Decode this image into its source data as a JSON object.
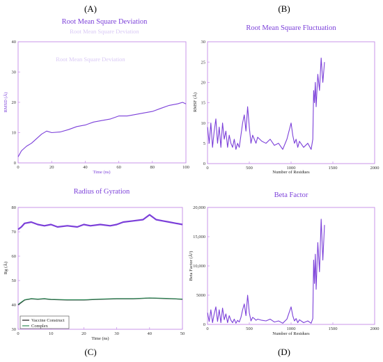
{
  "panel_labels": [
    "(A)",
    "(B)",
    "(C)",
    "(D)"
  ],
  "chart_data": [
    {
      "type": "line",
      "title": "Root Mean Square Deviation",
      "ghost_title": "Root Mean Square Deviation",
      "ghost_title_2": "Root Mean Square Deviation",
      "xlabel": "Time (ns)",
      "ylabel": "RMSD (Å)",
      "xlim": [
        0,
        100
      ],
      "ylim": [
        0,
        40
      ],
      "xticks": [
        0,
        20,
        40,
        60,
        80,
        100
      ],
      "yticks": [
        0,
        10,
        20,
        30,
        40
      ],
      "grid": false,
      "series": [
        {
          "color": "#7b3fd9",
          "x": [
            0,
            2,
            5,
            8,
            11,
            14,
            17,
            20,
            25,
            30,
            35,
            40,
            45,
            50,
            55,
            60,
            65,
            70,
            75,
            80,
            85,
            90,
            95,
            98,
            100
          ],
          "y": [
            2,
            4,
            5.5,
            6.5,
            8,
            9.5,
            10.5,
            10,
            10.2,
            11,
            12,
            12.5,
            13.5,
            14,
            14.5,
            15.5,
            15.5,
            16,
            16.5,
            17,
            18,
            19,
            19.5,
            20,
            19.5
          ]
        }
      ]
    },
    {
      "type": "line",
      "title": "Root Mean Square Fluctuation",
      "xlabel": "Number of Residues",
      "ylabel": "RMSF (Å)",
      "xlim": [
        0,
        2000
      ],
      "ylim": [
        0,
        30
      ],
      "xticks": [
        0,
        500,
        1000,
        1500,
        2000
      ],
      "yticks": [
        0,
        5,
        10,
        15,
        20,
        25,
        30
      ],
      "grid": false,
      "series": [
        {
          "color": "#7b3fd9",
          "x": [
            1,
            20,
            40,
            60,
            80,
            100,
            120,
            140,
            160,
            180,
            200,
            220,
            240,
            260,
            280,
            300,
            320,
            340,
            360,
            380,
            400,
            420,
            440,
            460,
            480,
            500,
            520,
            540,
            560,
            580,
            600,
            650,
            700,
            750,
            800,
            850,
            900,
            950,
            1000,
            1020,
            1040,
            1060,
            1080,
            1100,
            1150,
            1200,
            1240,
            1260,
            1270,
            1280,
            1290,
            1300,
            1320,
            1340,
            1360,
            1380,
            1400
          ],
          "y": [
            9,
            5,
            10,
            4,
            8,
            11,
            5,
            9,
            4,
            10,
            6,
            8,
            4,
            7,
            5,
            4,
            6,
            3.5,
            5,
            4,
            7,
            10,
            12,
            8,
            14,
            9,
            5,
            7,
            6,
            5,
            6.5,
            5.5,
            5,
            6,
            4.5,
            5,
            3.5,
            6,
            10,
            7,
            5,
            6,
            4,
            5.5,
            4,
            5,
            3.5,
            6,
            18,
            15,
            20,
            14,
            22,
            18,
            26,
            20,
            25
          ]
        }
      ]
    },
    {
      "type": "line",
      "title": "Radius of Gyration",
      "xlabel": "Time (ns)",
      "ylabel": "Rg (Å)",
      "xlim": [
        0,
        50
      ],
      "ylim": [
        30,
        80
      ],
      "xticks": [
        0,
        10,
        20,
        30,
        40,
        50
      ],
      "yticks": [
        30,
        40,
        50,
        60,
        70,
        80
      ],
      "grid": false,
      "legend": "bottom-left",
      "series": [
        {
          "color": "#7b3fd9",
          "x": [
            0,
            1,
            2,
            4,
            6,
            8,
            10,
            12,
            15,
            18,
            20,
            22,
            25,
            28,
            30,
            32,
            35,
            38,
            40,
            42,
            44,
            46,
            48,
            50
          ],
          "y": [
            71,
            72,
            73.5,
            74,
            73,
            72.5,
            73,
            72,
            72.5,
            72,
            73,
            72.5,
            73,
            72.5,
            73,
            74,
            74.5,
            75,
            77,
            75,
            74.5,
            74,
            73.5,
            73
          ]
        },
        {
          "name": "Vaccine Construct",
          "color": "#1a1a1a",
          "x": [
            0,
            1,
            2,
            4,
            6,
            8,
            10,
            15,
            20,
            25,
            30,
            35,
            40,
            45,
            50
          ],
          "y": [
            40,
            41,
            42,
            42.5,
            42.3,
            42.5,
            42.2,
            42,
            42,
            42.3,
            42.5,
            42.5,
            42.8,
            42.6,
            42.3
          ]
        },
        {
          "name": "Complex",
          "color": "#2e8b57",
          "x": [
            0,
            1,
            2,
            4,
            6,
            8,
            10,
            15,
            20,
            25,
            30,
            35,
            40,
            45,
            50
          ],
          "y": [
            40.2,
            41.2,
            42.1,
            42.6,
            42.4,
            42.6,
            42.3,
            42.1,
            42.1,
            42.4,
            42.6,
            42.6,
            42.9,
            42.7,
            42.4
          ]
        }
      ]
    },
    {
      "type": "line",
      "title": "Beta Factor",
      "xlabel": "Number of Residues",
      "ylabel": "Beta Factor (Å²)",
      "xlim": [
        0,
        2000
      ],
      "ylim": [
        0,
        20000
      ],
      "xticks": [
        0,
        500,
        1000,
        1500,
        2000
      ],
      "yticks": [
        0,
        5000,
        10000,
        15000,
        20000
      ],
      "ytick_labels": [
        "0",
        "5000",
        "10,000",
        "15,000",
        "20,000"
      ],
      "grid": false,
      "series": [
        {
          "color": "#7b3fd9",
          "x": [
            1,
            20,
            40,
            60,
            80,
            100,
            120,
            140,
            160,
            180,
            200,
            220,
            240,
            260,
            280,
            300,
            320,
            340,
            360,
            380,
            400,
            420,
            440,
            460,
            480,
            500,
            520,
            540,
            560,
            580,
            600,
            650,
            700,
            750,
            800,
            850,
            900,
            950,
            1000,
            1020,
            1040,
            1060,
            1080,
            1100,
            1150,
            1200,
            1240,
            1260,
            1270,
            1280,
            1290,
            1300,
            1320,
            1340,
            1360,
            1380,
            1400
          ],
          "y": [
            2000,
            500,
            2500,
            300,
            1800,
            3000,
            500,
            2500,
            300,
            2800,
            800,
            1800,
            300,
            1500,
            700,
            300,
            900,
            200,
            700,
            400,
            1200,
            2500,
            3500,
            1500,
            5000,
            2000,
            600,
            1200,
            1000,
            700,
            900,
            700,
            600,
            900,
            400,
            600,
            200,
            900,
            3000,
            1500,
            600,
            1000,
            300,
            800,
            300,
            600,
            200,
            1000,
            11000,
            7000,
            12000,
            6000,
            14000,
            9000,
            18000,
            11000,
            17000
          ]
        }
      ]
    }
  ]
}
